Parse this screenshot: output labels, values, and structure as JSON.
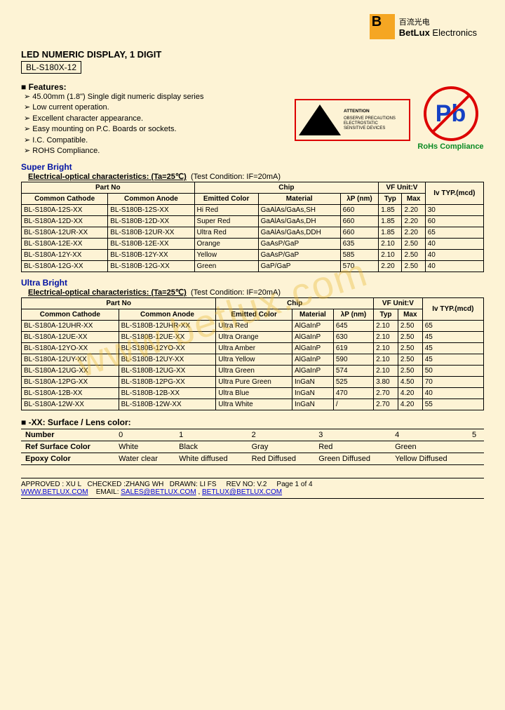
{
  "brand": {
    "chinese": "百流光电",
    "name_b": "BetLux",
    "name_rest": " Electronics"
  },
  "title": "LED NUMERIC DISPLAY, 1 DIGIT",
  "partNo": "BL-S180X-12",
  "featuresHeading": "Features:",
  "features": [
    "45.00mm (1.8\") Single digit numeric display series",
    "Low current operation.",
    "Excellent character appearance.",
    "Easy mounting on P.C. Boards or sockets.",
    "I.C. Compatible.",
    "ROHS Compliance."
  ],
  "attention": {
    "title": "ATTENTION",
    "line1": "OBSERVE PRECAUTIONS",
    "line2": "ELECTROSTATIC",
    "line3": "SENSITIVE DEVICES"
  },
  "pb": {
    "symbol": "Pb",
    "label": "RoHs Compliance"
  },
  "sb": {
    "section": "Super Bright",
    "char": "Electrical-optical characteristics: (Ta=25℃)",
    "cond": "(Test Condition: IF=20mA)",
    "headers": {
      "partNo": "Part No",
      "cc": "Common Cathode",
      "ca": "Common Anode",
      "chip": "Chip",
      "emit": "Emitted Color",
      "mat": "Material",
      "lp": "λP (nm)",
      "vf": "VF Unit:V",
      "typ": "Typ",
      "max": "Max",
      "iv": "Iv TYP.(mcd)"
    },
    "rows": [
      {
        "cc": "BL-S180A-12S-XX",
        "ca": "BL-S180B-12S-XX",
        "emit": "Hi Red",
        "mat": "GaAlAs/GaAs,SH",
        "lp": "660",
        "typ": "1.85",
        "max": "2.20",
        "iv": "30"
      },
      {
        "cc": "BL-S180A-12D-XX",
        "ca": "BL-S180B-12D-XX",
        "emit": "Super Red",
        "mat": "GaAlAs/GaAs,DH",
        "lp": "660",
        "typ": "1.85",
        "max": "2.20",
        "iv": "60"
      },
      {
        "cc": "BL-S180A-12UR-XX",
        "ca": "BL-S180B-12UR-XX",
        "emit": "Ultra Red",
        "mat": "GaAlAs/GaAs,DDH",
        "lp": "660",
        "typ": "1.85",
        "max": "2.20",
        "iv": "65"
      },
      {
        "cc": "BL-S180A-12E-XX",
        "ca": "BL-S180B-12E-XX",
        "emit": "Orange",
        "mat": "GaAsP/GaP",
        "lp": "635",
        "typ": "2.10",
        "max": "2.50",
        "iv": "40"
      },
      {
        "cc": "BL-S180A-12Y-XX",
        "ca": "BL-S180B-12Y-XX",
        "emit": "Yellow",
        "mat": "GaAsP/GaP",
        "lp": "585",
        "typ": "2.10",
        "max": "2.50",
        "iv": "40"
      },
      {
        "cc": "BL-S180A-12G-XX",
        "ca": "BL-S180B-12G-XX",
        "emit": "Green",
        "mat": "GaP/GaP",
        "lp": "570",
        "typ": "2.20",
        "max": "2.50",
        "iv": "40"
      }
    ]
  },
  "ub": {
    "section": "Ultra Bright",
    "char": "Electrical-optical characteristics: (Ta=25℃)",
    "cond": "(Test Condition: IF=20mA)",
    "headers": {
      "partNo": "Part No",
      "cc": "Common Cathode",
      "ca": "Common Anode",
      "chip": "Chip",
      "emit": "Emitted Color",
      "mat": "Material",
      "lp": "λP (nm)",
      "vf": "VF Unit:V",
      "typ": "Typ",
      "max": "Max",
      "iv": "Iv TYP.(mcd)"
    },
    "rows": [
      {
        "cc": "BL-S180A-12UHR-XX",
        "ca": "BL-S180B-12UHR-XX",
        "emit": "Ultra Red",
        "mat": "AlGaInP",
        "lp": "645",
        "typ": "2.10",
        "max": "2.50",
        "iv": "65"
      },
      {
        "cc": "BL-S180A-12UE-XX",
        "ca": "BL-S180B-12UE-XX",
        "emit": "Ultra Orange",
        "mat": "AlGaInP",
        "lp": "630",
        "typ": "2.10",
        "max": "2.50",
        "iv": "45"
      },
      {
        "cc": "BL-S180A-12YO-XX",
        "ca": "BL-S180B-12YO-XX",
        "emit": "Ultra Amber",
        "mat": "AlGaInP",
        "lp": "619",
        "typ": "2.10",
        "max": "2.50",
        "iv": "45"
      },
      {
        "cc": "BL-S180A-12UY-XX",
        "ca": "BL-S180B-12UY-XX",
        "emit": "Ultra Yellow",
        "mat": "AlGaInP",
        "lp": "590",
        "typ": "2.10",
        "max": "2.50",
        "iv": "45"
      },
      {
        "cc": "BL-S180A-12UG-XX",
        "ca": "BL-S180B-12UG-XX",
        "emit": "Ultra Green",
        "mat": "AlGaInP",
        "lp": "574",
        "typ": "2.10",
        "max": "2.50",
        "iv": "50"
      },
      {
        "cc": "BL-S180A-12PG-XX",
        "ca": "BL-S180B-12PG-XX",
        "emit": "Ultra Pure Green",
        "mat": "InGaN",
        "lp": "525",
        "typ": "3.80",
        "max": "4.50",
        "iv": "70"
      },
      {
        "cc": "BL-S180A-12B-XX",
        "ca": "BL-S180B-12B-XX",
        "emit": "Ultra Blue",
        "mat": "InGaN",
        "lp": "470",
        "typ": "2.70",
        "max": "4.20",
        "iv": "40"
      },
      {
        "cc": "BL-S180A-12W-XX",
        "ca": "BL-S180B-12W-XX",
        "emit": "Ultra White",
        "mat": "InGaN",
        "lp": "/",
        "typ": "2.70",
        "max": "4.20",
        "iv": "55"
      }
    ]
  },
  "surface": {
    "title": "-XX: Surface / Lens color:",
    "headers": {
      "num": "Number",
      "ref": "Ref Surface Color",
      "epoxy": "Epoxy Color"
    },
    "cols": [
      "0",
      "1",
      "2",
      "3",
      "4",
      "5"
    ],
    "ref": [
      "White",
      "Black",
      "Gray",
      "Red",
      "Green",
      ""
    ],
    "epoxy": [
      "Water clear",
      "White diffused",
      "Red Diffused",
      "Green Diffused",
      "Yellow Diffused",
      ""
    ]
  },
  "watermark": "www.betlux.com",
  "footer": {
    "approved": "APPROVED : XU L",
    "checked": "CHECKED :ZHANG WH",
    "drawn": "DRAWN: LI FS",
    "rev": "REV NO: V.2",
    "page": "Page 1 of 4",
    "site": "WWW.BETLUX.COM",
    "emailLbl": "EMAIL:",
    "email1": "SALES@BETLUX.COM",
    "sep": ",",
    "email2": "BETLUX@BETLUX.COM"
  }
}
